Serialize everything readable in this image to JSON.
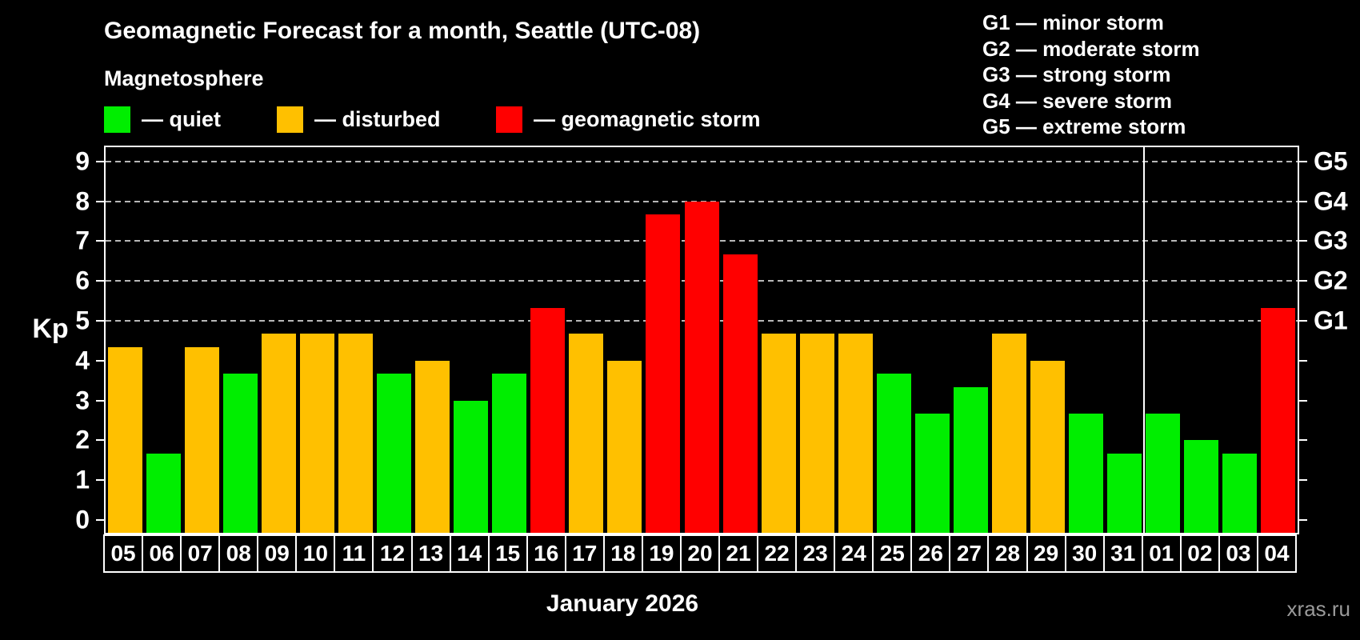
{
  "page": {
    "title": "Geomagnetic Forecast for a month, Seattle (UTC-08)",
    "subtitle": "Magnetosphere"
  },
  "legend": [
    {
      "key": "quiet",
      "label": "— quiet",
      "color": "#00ee00"
    },
    {
      "key": "disturbed",
      "label": "— disturbed",
      "color": "#ffc000"
    },
    {
      "key": "storm",
      "label": "— geomagnetic storm",
      "color": "#ff0000"
    }
  ],
  "gscale_legend": [
    "G1 — minor storm",
    "G2 — moderate storm",
    "G3 — strong storm",
    "G4 — severe storm",
    "G5 — extreme storm"
  ],
  "axes": {
    "y_label": "Kp",
    "y_ticks": [
      0,
      1,
      2,
      3,
      4,
      5,
      6,
      7,
      8,
      9
    ],
    "g_labels": [
      {
        "kp": 5,
        "label": "G1"
      },
      {
        "kp": 6,
        "label": "G2"
      },
      {
        "kp": 7,
        "label": "G3"
      },
      {
        "kp": 8,
        "label": "G4"
      },
      {
        "kp": 9,
        "label": "G5"
      }
    ]
  },
  "footer": {
    "month_label": "January 2026",
    "watermark": "xras.ru"
  },
  "palette": {
    "quiet": "#00ee00",
    "disturbed": "#ffc000",
    "storm": "#ff0000",
    "gridline": "#b8b8b8",
    "axis": "#ffffff",
    "background": "#000000"
  },
  "chart_data": {
    "type": "bar",
    "title": "Geomagnetic Forecast for a month, Seattle (UTC-08)",
    "xlabel": "January 2026",
    "ylabel": "Kp",
    "ylim": [
      0,
      9
    ],
    "grid": "dashed horizontal at Kp 5-9 only",
    "gridlines": [
      5,
      6,
      7,
      8,
      9
    ],
    "categories": [
      "05",
      "06",
      "07",
      "08",
      "09",
      "10",
      "11",
      "12",
      "13",
      "14",
      "15",
      "16",
      "17",
      "18",
      "19",
      "20",
      "21",
      "22",
      "23",
      "24",
      "25",
      "26",
      "27",
      "28",
      "29",
      "30",
      "31",
      "01",
      "02",
      "03",
      "04"
    ],
    "values": [
      4.33,
      1.67,
      4.33,
      3.67,
      4.67,
      4.67,
      4.67,
      3.67,
      4.0,
      3.0,
      3.67,
      5.33,
      4.67,
      4.0,
      7.67,
      8.0,
      6.67,
      4.67,
      4.67,
      4.67,
      3.67,
      2.67,
      3.33,
      4.67,
      4.0,
      2.67,
      1.67,
      2.67,
      2.0,
      1.67,
      5.33
    ],
    "month_separator_after_index": 26,
    "color_rule": {
      "quiet_below": 4,
      "disturbed_below": 5,
      "storm_at_or_above": 5
    }
  }
}
